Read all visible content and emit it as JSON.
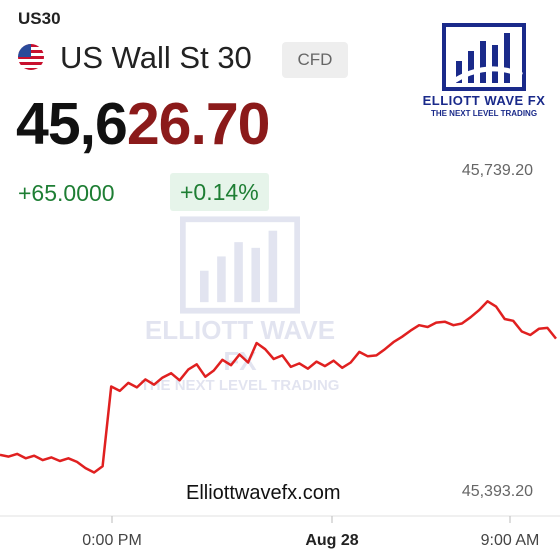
{
  "header": {
    "ticker": "US30",
    "name": "US Wall St 30",
    "badge": "CFD",
    "price_main": "45,6",
    "price_tail": "26.70",
    "change": "+65.0000",
    "change_pct": "+0.14%"
  },
  "brand": {
    "title": "ELLIOTT WAVE FX",
    "tagline": "THE NEXT LEVEL TRADING",
    "site": "Elliottwavefx.com",
    "color": "#1a2a8a"
  },
  "colors": {
    "line": "#e02020",
    "up": "#1e7e34",
    "price_tail": "#8b1a1a"
  },
  "chart_data": {
    "type": "line",
    "title": "",
    "xlabel": "",
    "ylabel": "",
    "x_tick_labels": [
      "0:00 PM",
      "Aug 28",
      "9:00 AM"
    ],
    "y_labels": [
      "45,739.20",
      "45,393.20"
    ],
    "ylim": [
      45393.2,
      45739.2
    ],
    "grid": false,
    "series": [
      {
        "values": [
          45425,
          45423,
          45426,
          45421,
          45424,
          45419,
          45422,
          45418,
          45421,
          45417,
          45410,
          45405,
          45412,
          45502,
          45497,
          45506,
          45501,
          45510,
          45504,
          45512,
          45517,
          45509,
          45521,
          45527,
          45513,
          45520,
          45532,
          45526,
          45538,
          45529,
          45551,
          45544,
          45533,
          45537,
          45524,
          45528,
          45522,
          45530,
          45525,
          45531,
          45523,
          45529,
          45541,
          45536,
          45537,
          45544,
          45552,
          45558,
          45565,
          45571,
          45569,
          45574,
          45575,
          45571,
          45573,
          45580,
          45588,
          45598,
          45592,
          45578,
          45576,
          45564,
          45560,
          45567,
          45568,
          45556
        ]
      }
    ]
  }
}
